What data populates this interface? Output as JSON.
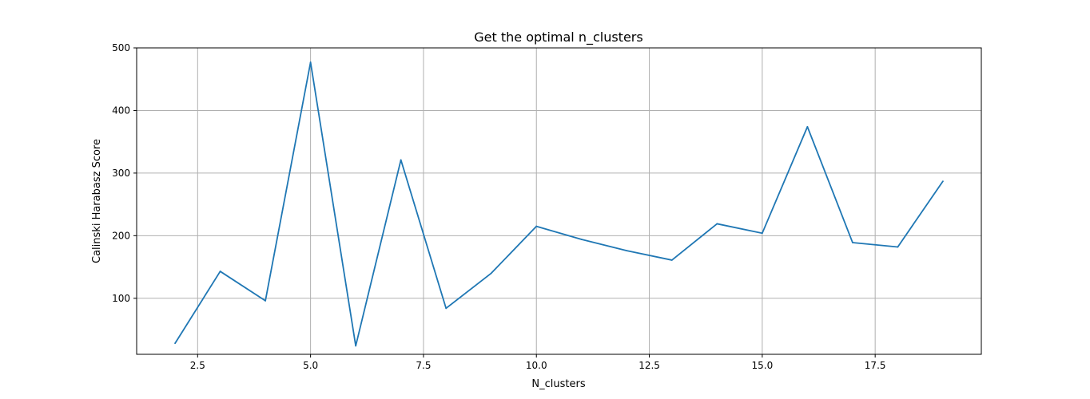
{
  "chart_data": {
    "type": "line",
    "title": "Get the optimal n_clusters",
    "xlabel": "N_clusters",
    "ylabel": "Calinski Harabasz Score",
    "xlim": [
      1.15,
      19.85
    ],
    "ylim": [
      10.5,
      500
    ],
    "xticks": [
      2.5,
      5.0,
      7.5,
      10.0,
      12.5,
      15.0,
      17.5
    ],
    "xtick_labels": [
      "2.5",
      "5.0",
      "7.5",
      "10.0",
      "12.5",
      "15.0",
      "17.5"
    ],
    "yticks": [
      100,
      200,
      300,
      400,
      500
    ],
    "ytick_labels": [
      "100",
      "200",
      "300",
      "400",
      "500"
    ],
    "grid": true,
    "series": [
      {
        "color": "#1f77b4",
        "x": [
          2,
          3,
          4,
          5,
          6,
          7,
          8,
          9,
          10,
          11,
          12,
          13,
          14,
          15,
          16,
          17,
          18,
          19
        ],
        "values": [
          28,
          143,
          96,
          477,
          24,
          321,
          84,
          140,
          215,
          194,
          176,
          161,
          219,
          204,
          374,
          189,
          182,
          287
        ]
      }
    ]
  }
}
